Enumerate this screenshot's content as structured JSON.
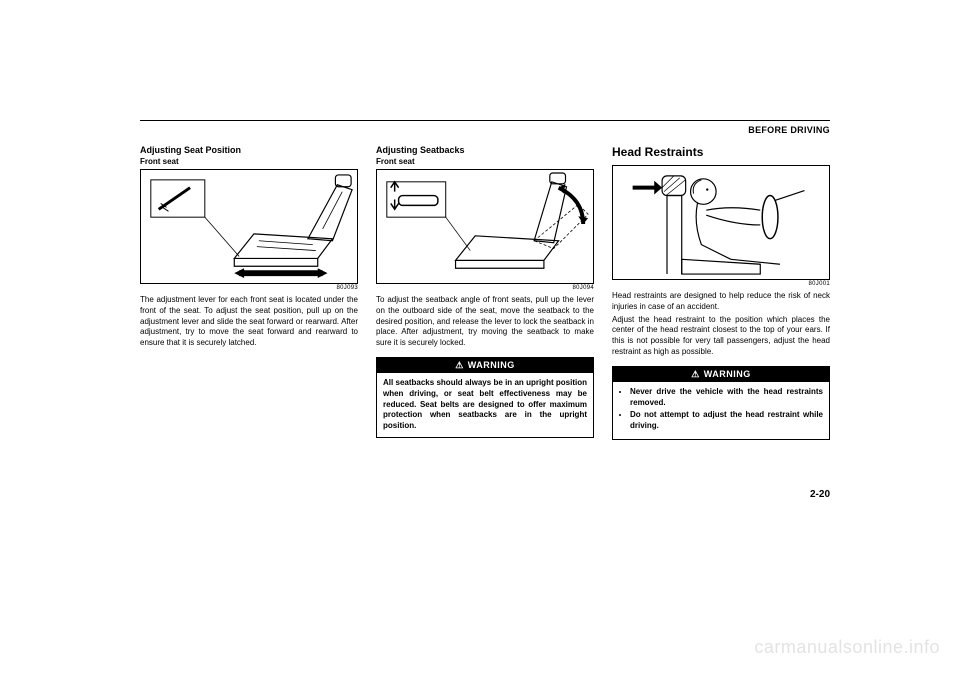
{
  "section_header": "BEFORE DRIVING",
  "page_number": "2-20",
  "watermark": "carmanualsonline.info",
  "col1": {
    "heading": "Adjusting Seat Position",
    "subheading": "Front seat",
    "figure_id": "80J093",
    "body": "The adjustment lever for each front seat is located under the front of the seat. To adjust the seat position, pull up on the adjustment lever and slide the seat forward or rearward. After adjustment, try to move the seat forward and rearward to ensure that it is securely latched."
  },
  "col2": {
    "heading": "Adjusting Seatbacks",
    "subheading": "Front seat",
    "figure_id": "80J094",
    "body": "To adjust the seatback angle of front seats, pull up the lever on the outboard side of the seat, move the seatback to the desired position, and release the lever to lock the seatback in place. After adjustment, try moving the seatback to make sure it is securely locked.",
    "warning_title": "WARNING",
    "warning_body": "All seatbacks should always be in an upright position when driving, or seat belt effectiveness may be reduced. Seat belts are designed to offer maximum protection when seatbacks are in the upright position."
  },
  "col3": {
    "heading": "Head Restraints",
    "figure_id": "80J001",
    "body": "Head restraints are designed to help reduce the risk of neck injuries in case of an accident.\nAdjust the head restraint to the position which places the center of the head restraint closest to the top of your ears. If this is not possible for very tall passengers, adjust the head restraint as high as possible.",
    "warning_title": "WARNING",
    "warning_items": [
      "Never drive the vehicle with the head restraints removed.",
      "Do not attempt to adjust the head restraint while driving."
    ]
  },
  "colors": {
    "text": "#000000",
    "bg": "#ffffff",
    "warning_bg": "#000000",
    "warning_fg": "#ffffff",
    "watermark": "#e3e3e3"
  }
}
